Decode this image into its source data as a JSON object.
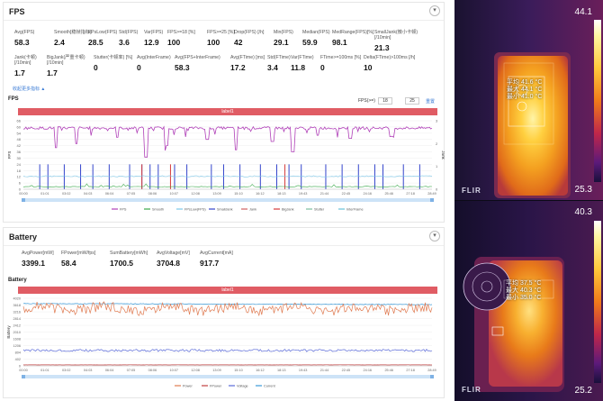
{
  "fps_panel": {
    "title": "FPS",
    "metrics_row1": [
      {
        "label": "Avg(FPS)",
        "value": "58.3"
      },
      {
        "label": "Smooth[稳帧指标]",
        "value": "2.4"
      },
      {
        "label": "FPsLow(FPS)",
        "value": "28.5"
      },
      {
        "label": "Std(FPS)",
        "value": "3.6"
      },
      {
        "label": "Var(FPS)",
        "value": "12.9"
      },
      {
        "label": "FPS>=18 [%]",
        "value": "100"
      },
      {
        "label": "FPS>=25 [%]",
        "value": "100"
      },
      {
        "label": "Drop(FPS) [/h]",
        "value": "42"
      },
      {
        "label": "Min(FPS)",
        "value": "29.1"
      },
      {
        "label": "Median(FPS)",
        "value": "59.9"
      },
      {
        "label": "MedRange(FPS)[%]",
        "value": "98.1"
      },
      {
        "label": "SmallJank(微小卡顿)\n[/10min]",
        "value": "21.3"
      }
    ],
    "metrics_row2": [
      {
        "label": "Jank(卡顿)\n[/10min]",
        "value": "1.7"
      },
      {
        "label": "BigJank(严重卡顿)\n[/10min]",
        "value": "1.7"
      },
      {
        "label": "Stutter(卡顿率) [%]",
        "value": "0"
      },
      {
        "label": "Avg(InterFrame)",
        "value": "0"
      },
      {
        "label": "Avg(FPS+InterFrame)",
        "value": "58.3"
      },
      {
        "label": "Avg(FTime) [ms]",
        "value": "17.2"
      },
      {
        "label": "Std(FTime)",
        "value": "3.4"
      },
      {
        "label": "Var(FTime)",
        "value": "11.8"
      },
      {
        "label": "FTime>=100ms [%]",
        "value": "0"
      },
      {
        "label": "Delta(FTime)>100ms [/h]",
        "value": "10"
      }
    ],
    "more_link": "收起更多指标 ▲",
    "chart_title": "FPS",
    "label_bar": "label1",
    "fps_ctrl_label": "FPS(>=)",
    "fps_input_1": "18",
    "fps_input_2": "25",
    "reset": "重置"
  },
  "battery_panel": {
    "title": "Battery",
    "metrics": [
      {
        "label": "AvgPower[mW]",
        "value": "3399.1"
      },
      {
        "label": "FPower[mW/fps]",
        "value": "58.4"
      },
      {
        "label": "SumBattery[mWh]",
        "value": "1700.5"
      },
      {
        "label": "AvgVoltage[mV]",
        "value": "3704.8"
      },
      {
        "label": "AvgCurrent[mA]",
        "value": "917.7"
      }
    ],
    "chart_title": "Battery",
    "label_bar": "label1"
  },
  "thermal_top": {
    "max": "44.1",
    "min": "25.3",
    "readout": [
      "平均 41.6 °C",
      "最大 44.1 °C",
      "最小 41.0 °C"
    ],
    "brand": "FLIR"
  },
  "thermal_bottom": {
    "max": "40.3",
    "min": "25.2",
    "readout": [
      "平均 37.5 °C",
      "最大 40.3 °C",
      "最小 35.0 °C"
    ],
    "brand": "FLIR"
  },
  "chart_data": [
    {
      "type": "line",
      "title": "FPS",
      "ylabel": "FPS",
      "y2label": "Jank",
      "yticks": [
        0,
        6,
        12,
        18,
        24,
        30,
        36,
        42,
        48,
        54,
        60,
        66
      ],
      "y2ticks": [
        0,
        1,
        2,
        3
      ],
      "ylim": [
        0,
        66
      ],
      "x": [
        "00:00",
        "01:01",
        "03:02",
        "04:03",
        "06:04",
        "07:05",
        "08:06",
        "10:07",
        "12:08",
        "13:09",
        "15:10",
        "16:12",
        "18:13",
        "19:43",
        "21:44",
        "22:45",
        "24:16",
        "25:46",
        "27:18",
        "28:49"
      ],
      "series_names": [
        "FPS",
        "Smooth",
        "FPsLow(FPS)",
        "SmallJank",
        "Jank",
        "BigJank",
        "Stutter",
        "InterFrame"
      ],
      "series_colors": [
        "#b040b8",
        "#3aa84a",
        "#7cc7e8",
        "#3344cc",
        "#d06060",
        "#d63a3a",
        "#7abda0",
        "#66c0d8"
      ],
      "fps_baseline": 59,
      "fps_dips": [
        {
          "t": 0.08,
          "v": 40
        },
        {
          "t": 0.13,
          "v": 44
        },
        {
          "t": 0.23,
          "v": 50
        },
        {
          "t": 0.3,
          "v": 31
        },
        {
          "t": 0.35,
          "v": 42
        },
        {
          "t": 0.45,
          "v": 48
        },
        {
          "t": 0.52,
          "v": 38
        },
        {
          "t": 0.61,
          "v": 46
        },
        {
          "t": 0.66,
          "v": 36
        },
        {
          "t": 0.72,
          "v": 52
        },
        {
          "t": 0.8,
          "v": 49
        },
        {
          "t": 0.9,
          "v": 51
        }
      ],
      "jank_spikes": [
        0.04,
        0.06,
        0.1,
        0.14,
        0.17,
        0.21,
        0.26,
        0.29,
        0.31,
        0.33,
        0.37,
        0.4,
        0.46,
        0.49,
        0.53,
        0.58,
        0.62,
        0.65,
        0.68,
        0.74,
        0.78,
        0.82,
        0.86,
        0.88,
        0.93,
        0.97
      ],
      "bigjank_spikes": [
        0.29,
        0.36,
        0.64
      ]
    },
    {
      "type": "line",
      "title": "Battery",
      "ylabel": "Battery",
      "yticks": [
        0,
        402,
        804,
        1206,
        1608,
        2010,
        2412,
        2814,
        3216,
        3618,
        4020
      ],
      "ylim": [
        0,
        4020
      ],
      "x": [
        "00:00",
        "01:01",
        "03:02",
        "04:03",
        "06:04",
        "07:05",
        "08:06",
        "10:07",
        "12:08",
        "13:09",
        "15:10",
        "16:12",
        "18:13",
        "19:43",
        "21:44",
        "22:45",
        "24:16",
        "25:46",
        "27:18",
        "28:49"
      ],
      "series_names": [
        "Power",
        "FPower",
        "Voltage",
        "Current"
      ],
      "series_colors": [
        "#e07a50",
        "#c04040",
        "#5a6ad8",
        "#3a9ad8"
      ],
      "power_mean": 3399,
      "voltage_mean": 3705,
      "current_mean": 918,
      "fpower_mean": 58
    }
  ]
}
